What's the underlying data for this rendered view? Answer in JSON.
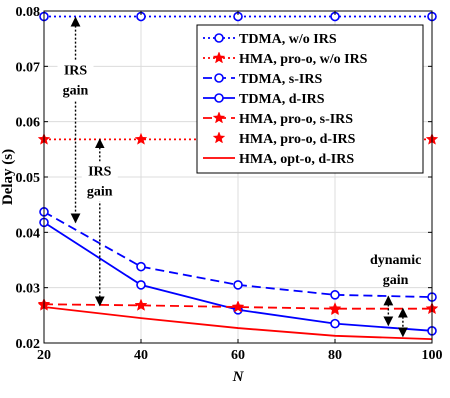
{
  "chart_data": {
    "type": "line",
    "xlabel": "N",
    "ylabel": "Delay (s)",
    "xlim": [
      20,
      100
    ],
    "ylim": [
      0.02,
      0.08
    ],
    "x_ticks": [
      "20",
      "40",
      "60",
      "80",
      "100"
    ],
    "y_ticks": [
      "0.02",
      "0.03",
      "0.04",
      "0.05",
      "0.06",
      "0.07",
      "0.08"
    ],
    "grid": true,
    "legend_position": "top-right",
    "x": [
      20,
      40,
      60,
      80,
      100
    ],
    "series": [
      {
        "name": "TDMA, w/o IRS",
        "values": [
          0.079,
          0.079,
          0.079,
          0.079,
          0.079
        ],
        "color": "#0000ff",
        "dash": "dotted",
        "marker": "circle"
      },
      {
        "name": "HMA, pro-o, w/o IRS",
        "values": [
          0.0568,
          0.0568,
          0.0568,
          0.0568,
          0.0568
        ],
        "color": "#ff0000",
        "dash": "dotted",
        "marker": "star"
      },
      {
        "name": "TDMA, s-IRS",
        "values": [
          0.0437,
          0.0338,
          0.0305,
          0.0287,
          0.0283
        ],
        "color": "#0000ff",
        "dash": "dashed",
        "marker": "circle"
      },
      {
        "name": "TDMA, d-IRS",
        "values": [
          0.0418,
          0.0305,
          0.026,
          0.0235,
          0.0222
        ],
        "color": "#0000ff",
        "dash": "solid",
        "marker": "circle"
      },
      {
        "name": "HMA, pro-o, s-IRS",
        "values": [
          0.027,
          0.0268,
          0.0265,
          0.0262,
          0.0262
        ],
        "color": "#ff0000",
        "dash": "dashed",
        "marker": "star"
      },
      {
        "name": "HMA, pro-o, d-IRS",
        "values": [
          0.0268,
          0.0268,
          0.0265,
          0.026,
          0.0262
        ],
        "color": "#ff0000",
        "dash": "none",
        "marker": "star"
      },
      {
        "name": "HMA, opt-o, d-IRS",
        "values": [
          0.0265,
          0.0245,
          0.0227,
          0.0213,
          0.0207
        ],
        "color": "#ff0000",
        "dash": "solid",
        "marker": "none"
      }
    ],
    "annotations": [
      {
        "lines": [
          "IRS",
          "gain"
        ]
      },
      {
        "lines": [
          "IRS",
          "gain"
        ]
      },
      {
        "lines": [
          "dynamic",
          "gain"
        ]
      }
    ]
  }
}
